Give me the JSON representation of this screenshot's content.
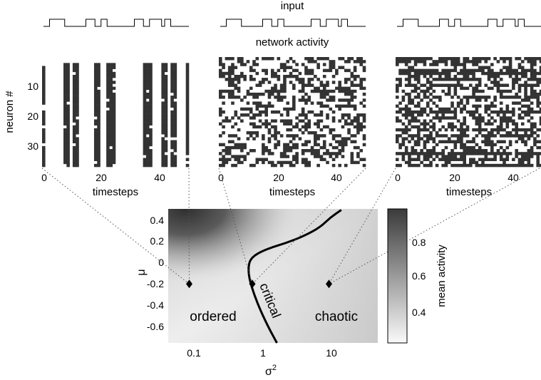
{
  "headings": {
    "input": "input",
    "network_activity": "network activity"
  },
  "raster_panels": {
    "ylabel": "neuron #",
    "xlabel": "timesteps",
    "y_ticks": [
      "10",
      "20",
      "30"
    ],
    "x_ticks": [
      "0",
      "20",
      "40"
    ],
    "n_neurons": 37,
    "n_timesteps": 48,
    "input_on_timesteps": [
      2,
      3,
      4,
      5,
      6,
      14,
      15,
      16,
      19,
      20,
      30,
      31,
      32,
      35,
      36,
      37,
      38,
      40,
      41
    ],
    "ordered_active_columns": [
      0,
      7,
      8,
      10,
      11,
      17,
      18,
      21,
      22,
      23,
      33,
      34,
      35,
      39,
      40,
      42,
      43,
      47
    ]
  },
  "phase_diagram": {
    "xlabel": "σ2",
    "ylabel": "μ",
    "x_ticks": [
      "0.1",
      "1",
      "10"
    ],
    "y_ticks": [
      "0.4",
      "0.2",
      "0",
      "-0.2",
      "-0.4",
      "-0.6"
    ],
    "xlim": [
      0.05,
      50
    ],
    "ylim": [
      -0.75,
      0.5
    ],
    "regions": {
      "ordered": "ordered",
      "critical": "critical",
      "chaotic": "chaotic"
    },
    "markers": [
      {
        "sigma2": 0.1,
        "mu": -0.2,
        "panel": "ordered"
      },
      {
        "sigma2": 0.8,
        "mu": -0.2,
        "panel": "critical"
      },
      {
        "sigma2": 10,
        "mu": -0.2,
        "panel": "chaotic"
      }
    ],
    "critical_line": [
      [
        1.8,
        -0.75
      ],
      [
        1.4,
        -0.62
      ],
      [
        1.05,
        -0.45
      ],
      [
        0.85,
        -0.3
      ],
      [
        0.72,
        -0.15
      ],
      [
        0.7,
        -0.03
      ],
      [
        0.78,
        0.05
      ],
      [
        1.2,
        0.12
      ],
      [
        2.4,
        0.18
      ],
      [
        4.5,
        0.25
      ],
      [
        7.5,
        0.33
      ],
      [
        10.5,
        0.42
      ],
      [
        15.0,
        0.49
      ]
    ]
  },
  "colorbar": {
    "label": "mean activity",
    "ticks": [
      "0.4",
      "0.6",
      "0.8"
    ],
    "range": [
      0.25,
      0.95
    ]
  }
}
